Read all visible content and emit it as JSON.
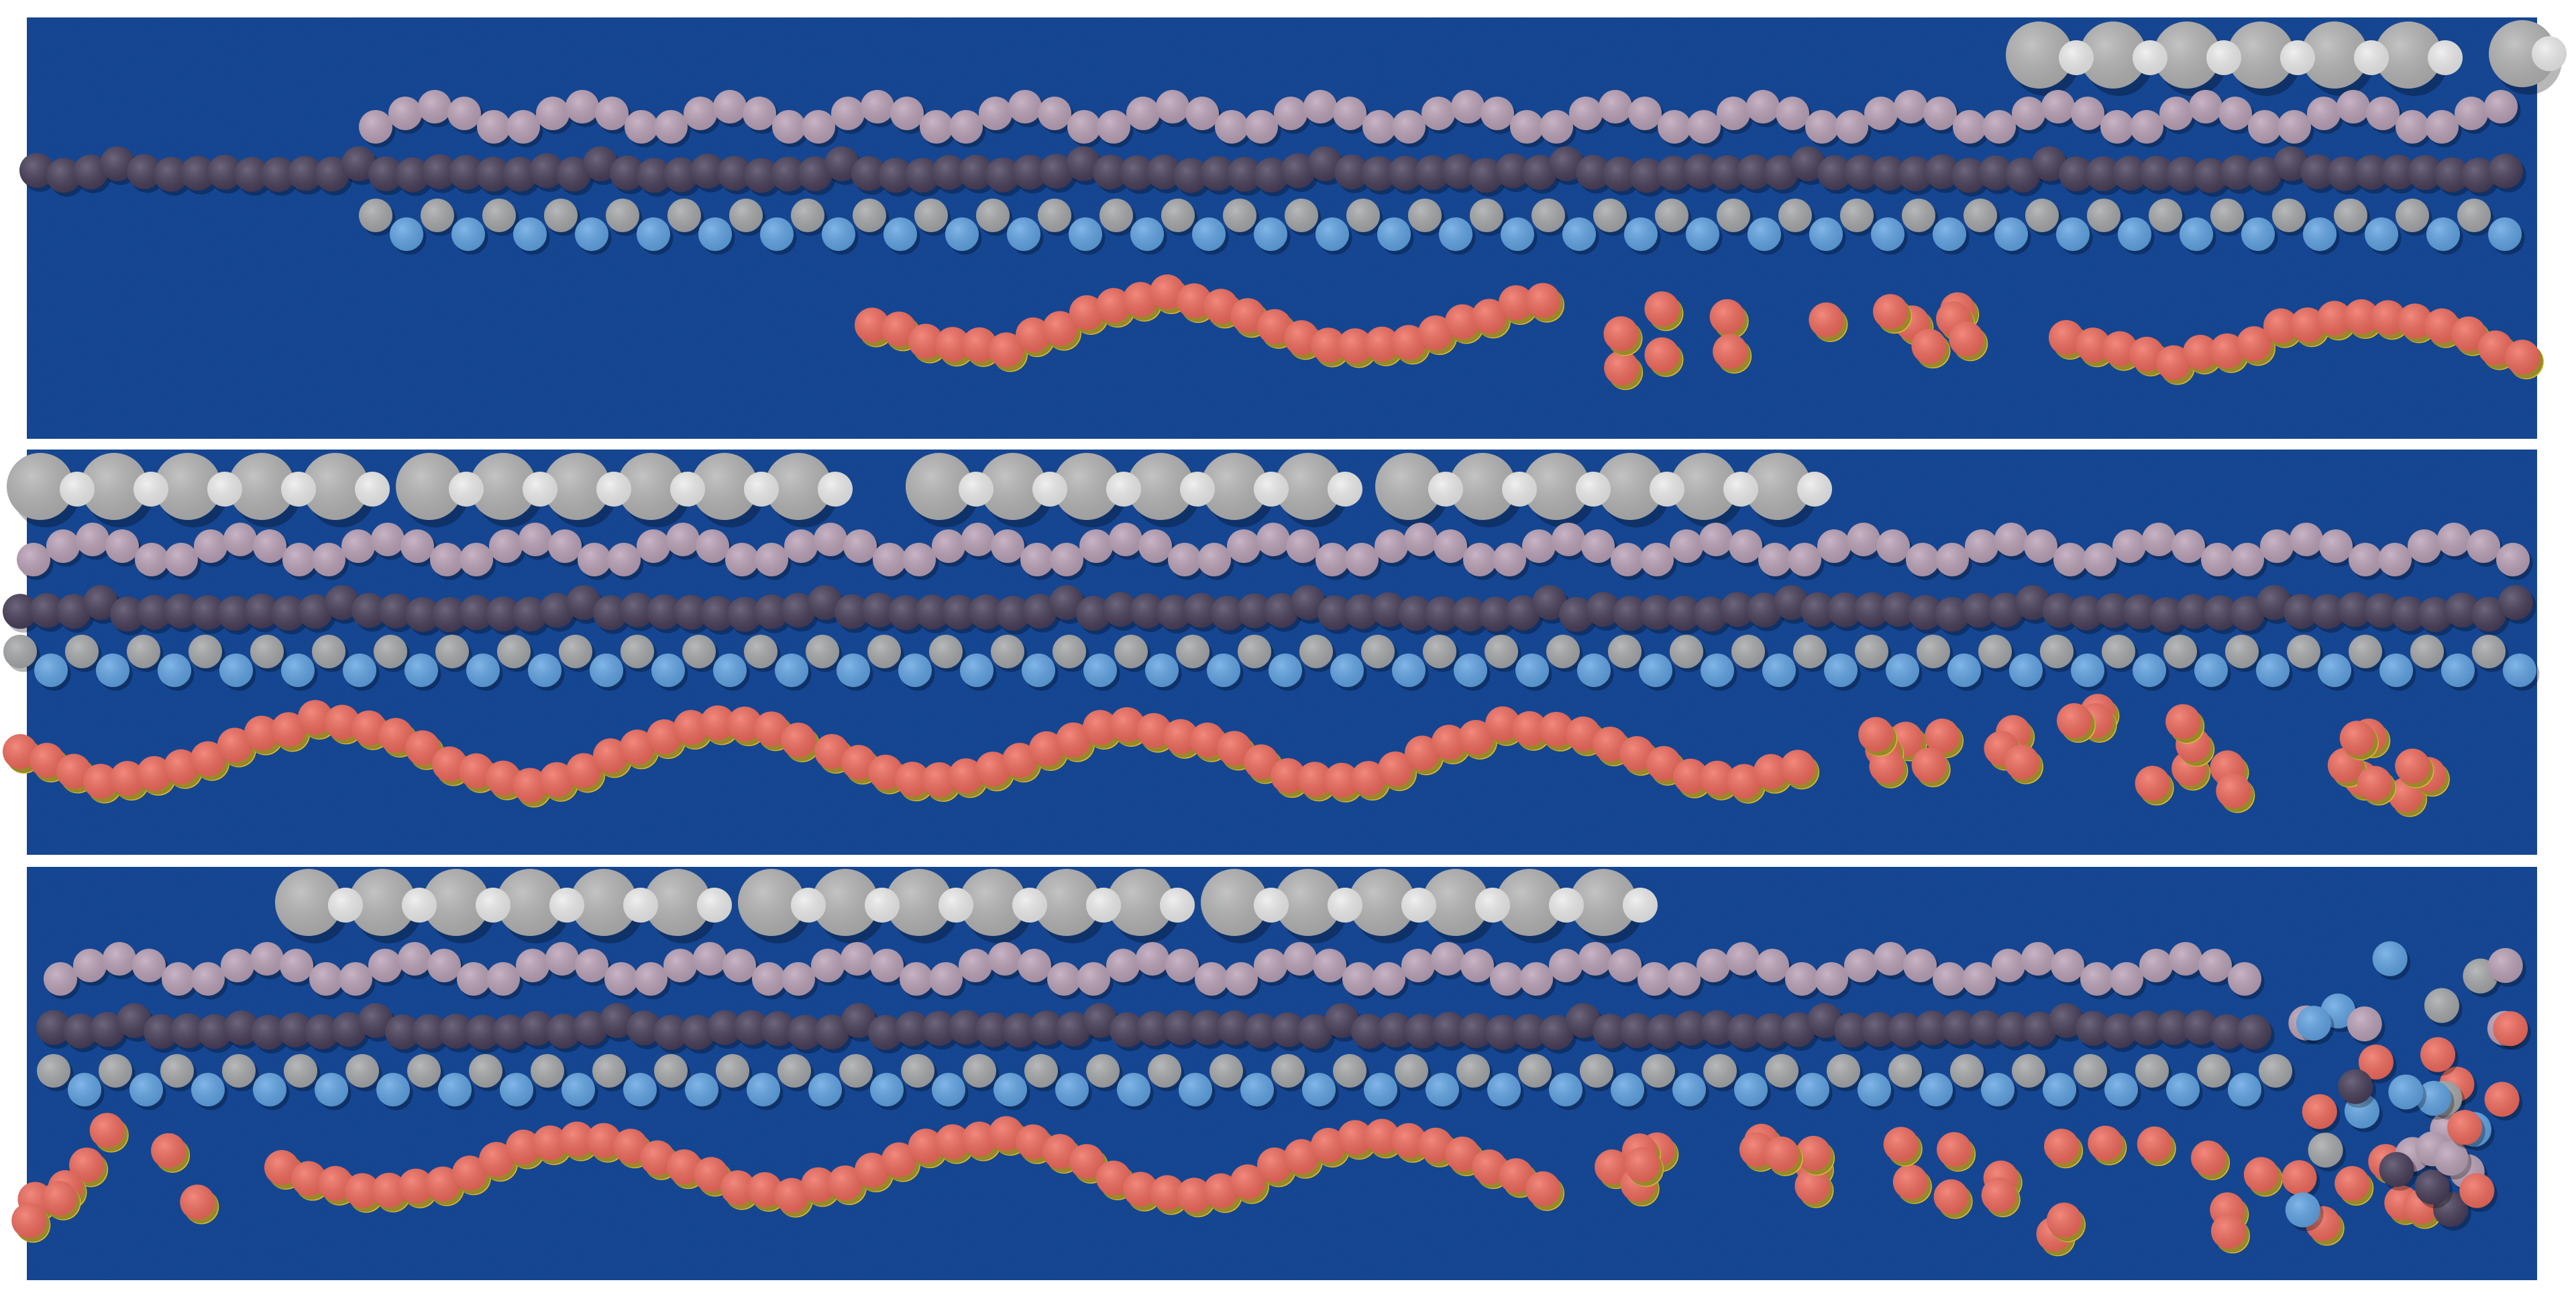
{
  "artwork": {
    "background_color": "#ffffff",
    "panel_color": "#0b3a8a",
    "panel_count": 3,
    "disc_colors": {
      "grey_large": "#b3b3b3",
      "white_small": "#ececec",
      "lilac": "#b9a0b6",
      "dark_purple": "#453b57",
      "grey": "#a4a6a8",
      "sky_blue": "#5ea2e3",
      "coral": "#f0685a",
      "yellow": "#f0d23a"
    },
    "rows_per_panel": [
      "grey-white",
      "lilac",
      "dark-purple",
      "grey-blue",
      "coral-yellow"
    ]
  }
}
